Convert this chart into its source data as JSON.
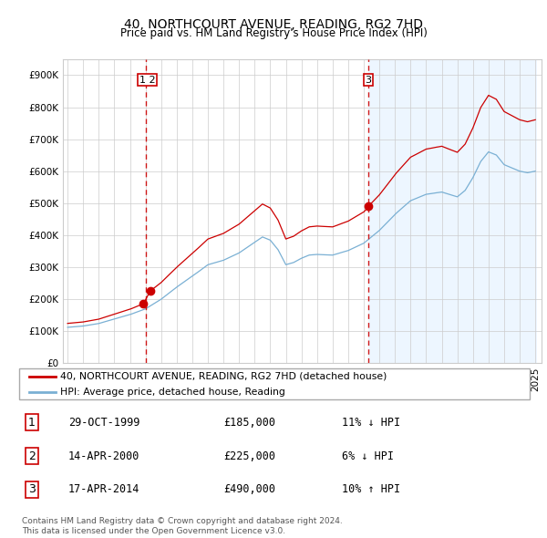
{
  "title": "40, NORTHCOURT AVENUE, READING, RG2 7HD",
  "subtitle": "Price paid vs. HM Land Registry's House Price Index (HPI)",
  "ylim": [
    0,
    950000
  ],
  "yticks": [
    0,
    100000,
    200000,
    300000,
    400000,
    500000,
    600000,
    700000,
    800000,
    900000
  ],
  "sale_dates_decimal": [
    1999.83,
    2000.29,
    2014.29
  ],
  "sale_prices": [
    185000,
    225000,
    490000
  ],
  "vline1": 2000.0,
  "vline2": 2014.29,
  "legend_house": "40, NORTHCOURT AVENUE, READING, RG2 7HD (detached house)",
  "legend_hpi": "HPI: Average price, detached house, Reading",
  "table_rows": [
    [
      "1",
      "29-OCT-1999",
      "£185,000",
      "11% ↓ HPI"
    ],
    [
      "2",
      "14-APR-2000",
      "£225,000",
      "6% ↓ HPI"
    ],
    [
      "3",
      "17-APR-2014",
      "£490,000",
      "10% ↑ HPI"
    ]
  ],
  "footnote": "Contains HM Land Registry data © Crown copyright and database right 2024.\nThis data is licensed under the Open Government Licence v3.0.",
  "line_color_house": "#cc0000",
  "line_color_hpi": "#7ab0d4",
  "vline_color": "#cc0000",
  "shade_color": "#ddeeff",
  "background_color": "#ffffff",
  "grid_color": "#cccccc"
}
